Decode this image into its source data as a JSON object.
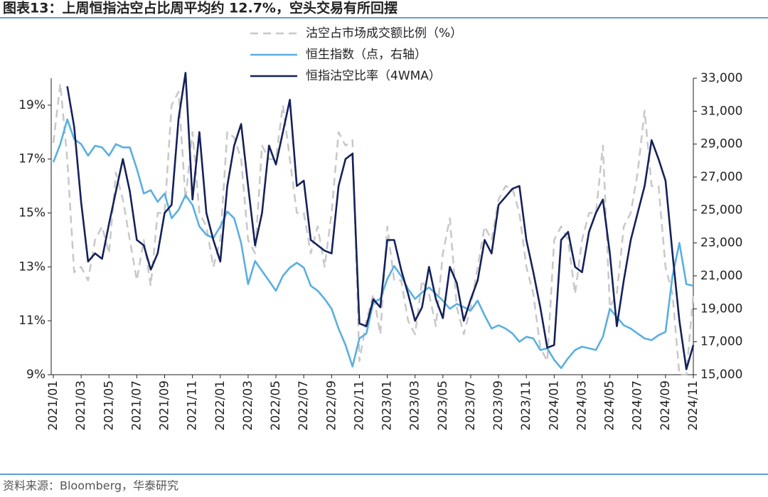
{
  "chart_data": {
    "type": "line",
    "title": "图表13：上周恒指沽空占比周平均约 12.7%，空头交易有所回摆",
    "source": "资料来源：Bloomberg，华泰研究",
    "categories": [
      "2021/01",
      null,
      null,
      null,
      "2021/03",
      null,
      null,
      null,
      "2021/05",
      null,
      null,
      null,
      "2021/07",
      null,
      null,
      null,
      "2021/09",
      null,
      null,
      null,
      "2021/11",
      null,
      null,
      null,
      "2022/01",
      null,
      null,
      null,
      "2022/03",
      null,
      null,
      null,
      "2022/05",
      null,
      null,
      null,
      "2022/07",
      null,
      null,
      null,
      "2022/09",
      null,
      null,
      null,
      "2022/11",
      null,
      null,
      null,
      "2023/01",
      null,
      null,
      null,
      "2023/03",
      null,
      null,
      null,
      "2023/05",
      null,
      null,
      null,
      "2023/07",
      null,
      null,
      null,
      "2023/09",
      null,
      null,
      null,
      "2023/11",
      null,
      null,
      null,
      "2024/01",
      null,
      null,
      null,
      "2024/03",
      null,
      null,
      null,
      "2024/05",
      null,
      null,
      null,
      "2024/07",
      null,
      null,
      null,
      "2024/09",
      null,
      null,
      null,
      "2024/11"
    ],
    "series": [
      {
        "name": "沽空占市场成交额比例（%）",
        "color": "#c8c8c8",
        "dashed": true,
        "axis": "y",
        "values": [
          17.6,
          19.8,
          17.0,
          12.8,
          13.0,
          12.5,
          14.0,
          14.5,
          13.5,
          16.5,
          15.5,
          14.0,
          12.5,
          14.0,
          12.3,
          15.0,
          15.0,
          19.0,
          19.5,
          15.5,
          18.0,
          15.0,
          14.5,
          13.0,
          14.0,
          18.0,
          17.8,
          17.0,
          14.0,
          13.5,
          17.5,
          17.0,
          17.0,
          19.0,
          17.0,
          15.0,
          15.0,
          13.5,
          14.5,
          13.0,
          15.0,
          18.0,
          17.5,
          17.7,
          9.5,
          11.0,
          12.0,
          10.5,
          14.5,
          12.5,
          12.5,
          11.0,
          10.5,
          12.5,
          12.0,
          10.8,
          13.5,
          14.8,
          11.5,
          10.5,
          11.5,
          13.0,
          14.5,
          14.0,
          15.5,
          16.0,
          15.9,
          15.0,
          13.0,
          12.0,
          10.0,
          9.5,
          14.0,
          14.5,
          14.0,
          12.0,
          14.0,
          15.0,
          15.0,
          17.5,
          11.5,
          12.0,
          14.5,
          15.0,
          16.5,
          18.8,
          16.0,
          16.0,
          13.0,
          12.0,
          9.0,
          9.0,
          12.0
        ]
      },
      {
        "name": "恒生指数（点，右轴）",
        "color": "#5aafe0",
        "axis": "y2",
        "values": [
          27900,
          29000,
          30500,
          29300,
          29000,
          28300,
          28900,
          28800,
          28300,
          29000,
          28800,
          28800,
          27500,
          26000,
          26200,
          25500,
          26000,
          24500,
          25000,
          25900,
          25300,
          24000,
          23500,
          23300,
          24000,
          24900,
          24500,
          23000,
          20500,
          21900,
          21300,
          20700,
          20100,
          21000,
          21500,
          21800,
          21500,
          20400,
          20100,
          19600,
          19000,
          17800,
          16800,
          15500,
          17200,
          17500,
          19400,
          19600,
          20800,
          21600,
          21000,
          20200,
          19600,
          20000,
          20300,
          19900,
          19500,
          19000,
          19300,
          19100,
          18900,
          19500,
          18600,
          17800,
          18000,
          17800,
          17500,
          17000,
          17300,
          17200,
          16500,
          16600,
          15900,
          15400,
          16000,
          16500,
          16700,
          16600,
          16500,
          17300,
          19000,
          18500,
          18000,
          17800,
          17500,
          17200,
          17100,
          17400,
          17600,
          21000,
          23000,
          20500,
          20400
        ]
      },
      {
        "name": "恒指沽空比率（4WMA）",
        "color": "#14215a",
        "axis": "y",
        "values": [
          null,
          null,
          19.7,
          18.2,
          15.4,
          13.2,
          13.5,
          13.3,
          14.6,
          15.8,
          17.0,
          15.8,
          14.0,
          13.8,
          12.9,
          13.5,
          15.0,
          15.3,
          18.5,
          20.2,
          15.5,
          18.0,
          15.0,
          14.0,
          13.2,
          16.0,
          17.5,
          18.3,
          16.0,
          13.8,
          15.0,
          17.5,
          16.8,
          18.0,
          19.2,
          16.0,
          16.2,
          14.0,
          13.8,
          13.6,
          13.5,
          16.0,
          17.0,
          17.2,
          10.9,
          10.8,
          11.8,
          11.5,
          14.0,
          14.0,
          12.9,
          12.0,
          11.0,
          11.5,
          13.0,
          11.8,
          11.1,
          13.0,
          12.4,
          11.0,
          11.8,
          12.5,
          14.0,
          13.5,
          15.3,
          15.6,
          15.9,
          16.0,
          14.0,
          12.8,
          11.5,
          10.0,
          10.1,
          14.0,
          14.3,
          13.0,
          12.8,
          14.3,
          15.0,
          15.5,
          13.5,
          10.8,
          12.5,
          14.0,
          15.0,
          16.0,
          17.7,
          17.0,
          16.2,
          13.5,
          11.0,
          9.2,
          10.1
        ]
      }
    ],
    "ylim": [
      9,
      20
    ],
    "yticks": [
      {
        "value": 9,
        "label": "9%"
      },
      {
        "value": 11,
        "label": "11%"
      },
      {
        "value": 13,
        "label": "13%"
      },
      {
        "value": 15,
        "label": "15%"
      },
      {
        "value": 17,
        "label": "17%"
      },
      {
        "value": 19,
        "label": "19%"
      }
    ],
    "y2lim": [
      15000,
      33000
    ],
    "y2ticks": [
      {
        "value": 15000,
        "label": "15,000"
      },
      {
        "value": 17000,
        "label": "17,000"
      },
      {
        "value": 19000,
        "label": "19,000"
      },
      {
        "value": 21000,
        "label": "21,000"
      },
      {
        "value": 23000,
        "label": "23,000"
      },
      {
        "value": 25000,
        "label": "25,000"
      },
      {
        "value": 27000,
        "label": "27,000"
      },
      {
        "value": 29000,
        "label": "29,000"
      },
      {
        "value": 31000,
        "label": "31,000"
      },
      {
        "value": 33000,
        "label": "33,000"
      }
    ],
    "legend": "top"
  }
}
